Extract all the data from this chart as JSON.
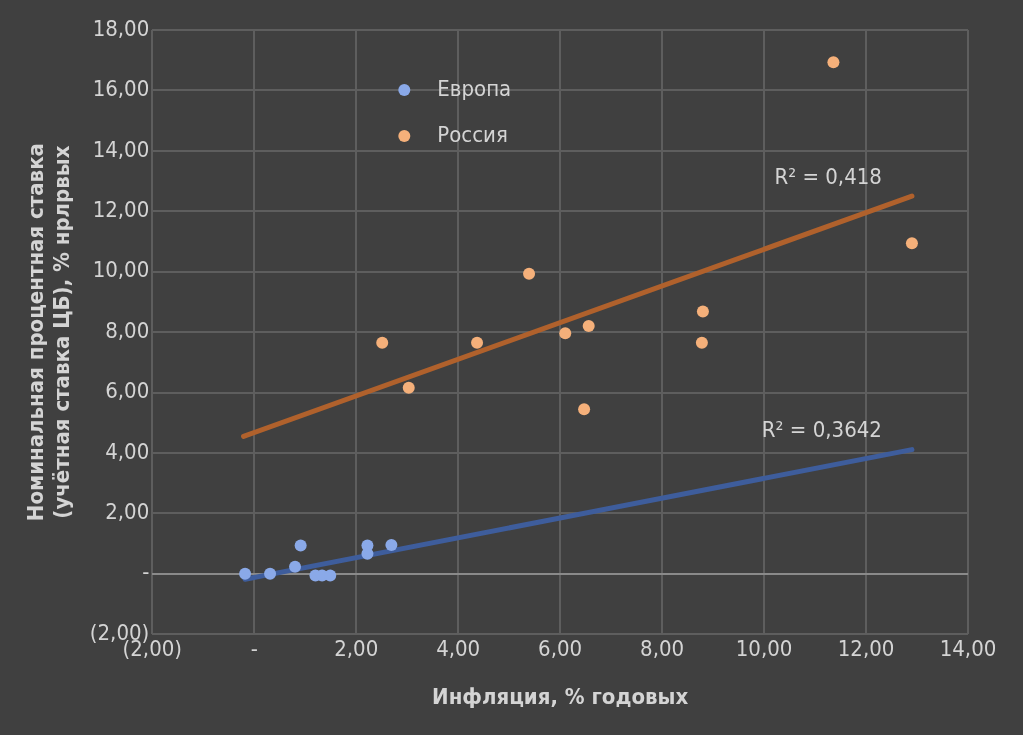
{
  "chart_data": {
    "type": "scatter",
    "xlabel": "Инфляция, % годовых",
    "ylabel": "Номинальная процентная ставка\n(учётная ставка ЦБ), % нрлрвых",
    "xlim": [
      -2,
      14
    ],
    "ylim": [
      -2,
      18
    ],
    "xticks": [
      {
        "value": -2,
        "label": "(2,00)"
      },
      {
        "value": 0,
        "label": "-"
      },
      {
        "value": 2,
        "label": "2,00"
      },
      {
        "value": 4,
        "label": "4,00"
      },
      {
        "value": 6,
        "label": "6,00"
      },
      {
        "value": 8,
        "label": "8,00"
      },
      {
        "value": 10,
        "label": "10,00"
      },
      {
        "value": 12,
        "label": "12,00"
      },
      {
        "value": 14,
        "label": "14,00"
      }
    ],
    "yticks": [
      {
        "value": -2,
        "label": "(2,00)"
      },
      {
        "value": 0,
        "label": "-"
      },
      {
        "value": 2,
        "label": "2,00"
      },
      {
        "value": 4,
        "label": "4,00"
      },
      {
        "value": 6,
        "label": "6,00"
      },
      {
        "value": 8,
        "label": "8,00"
      },
      {
        "value": 10,
        "label": "10,00"
      },
      {
        "value": 12,
        "label": "12,00"
      },
      {
        "value": 14,
        "label": "14,00"
      },
      {
        "value": 16,
        "label": "16,00"
      },
      {
        "value": 18,
        "label": "18,00"
      }
    ],
    "grid": true,
    "legend": "top left",
    "marker": "circle",
    "series": [
      {
        "name": "Европа",
        "color": "#8aa9e8",
        "x": [
          -0.18,
          0.31,
          0.8,
          0.91,
          1.2,
          1.33,
          1.49,
          2.22,
          2.22,
          2.69
        ],
        "values": [
          0,
          0,
          0.23,
          0.94,
          -0.06,
          -0.06,
          -0.06,
          0.94,
          0.66,
          0.95
        ]
      },
      {
        "name": "Россия",
        "color": "#f5b07a",
        "x": [
          2.51,
          3.03,
          4.37,
          5.39,
          6.1,
          6.47,
          6.56,
          8.78,
          8.8,
          11.36,
          12.9
        ],
        "values": [
          7.65,
          6.16,
          7.65,
          9.93,
          7.96,
          5.45,
          8.2,
          7.65,
          8.68,
          16.93,
          10.94
        ]
      },
      {
        "type": "line",
        "color": "#b0612c",
        "x": [
          -0.21,
          12.9
        ],
        "values": [
          4.55,
          12.5
        ],
        "marker": "none"
      },
      {
        "type": "line",
        "color": "#3e5d9c",
        "x": [
          -0.18,
          12.9
        ],
        "values": [
          -0.18,
          4.11
        ],
        "marker": "none"
      }
    ],
    "annotations": [
      "R² = 0,418",
      "R² = 0,3642"
    ]
  }
}
